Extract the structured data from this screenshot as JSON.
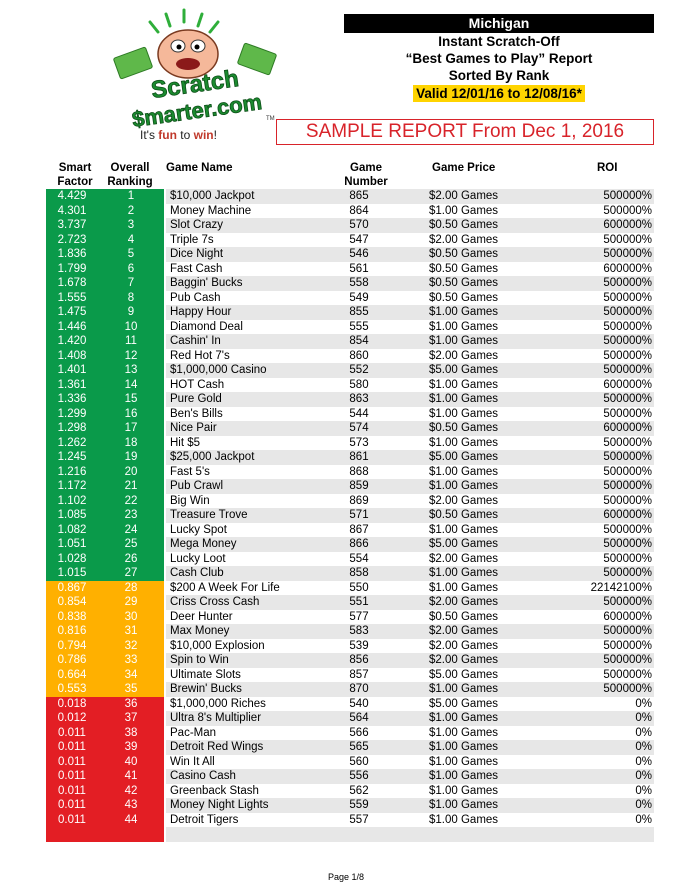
{
  "logo": {
    "top_word": "Scratch",
    "bottom_word": "$marter.com",
    "tag_pre": "It's ",
    "tag_bold": "fun",
    "tag_mid": " to ",
    "tag_bold2": "win",
    "tag_post": "!",
    "tm": "TM"
  },
  "header": {
    "state": "Michigan",
    "line1": "Instant Scratch-Off",
    "line2": "“Best Games to Play” Report",
    "line3": "Sorted By Rank",
    "valid": "Valid 12/01/16 to 12/08/16*"
  },
  "sample_banner": "SAMPLE REPORT From Dec 1, 2016",
  "columns": {
    "smart_factor_1": "Smart",
    "smart_factor_2": "Factor",
    "overall_1": "Overall",
    "overall_2": "Ranking",
    "game_name": "Game Name",
    "game_number_1": "Game",
    "game_number_2": "Number",
    "game_price": "Game Price",
    "roi": "ROI"
  },
  "colors": {
    "green": "#0a9a4a",
    "orange": "#ffb000",
    "red": "#e31e24"
  },
  "rows": [
    {
      "sf": "4.429",
      "rank": "1",
      "name": "$10,000 Jackpot",
      "num": "865",
      "price": "$2.00 Games",
      "roi": "500000%",
      "band": "green"
    },
    {
      "sf": "4.301",
      "rank": "2",
      "name": "Money Machine",
      "num": "864",
      "price": "$1.00 Games",
      "roi": "500000%",
      "band": "green"
    },
    {
      "sf": "3.737",
      "rank": "3",
      "name": "Slot Crazy",
      "num": "570",
      "price": "$0.50 Games",
      "roi": "600000%",
      "band": "green"
    },
    {
      "sf": "2.723",
      "rank": "4",
      "name": "Triple 7s",
      "num": "547",
      "price": "$2.00 Games",
      "roi": "500000%",
      "band": "green"
    },
    {
      "sf": "1.836",
      "rank": "5",
      "name": "Dice Night",
      "num": "546",
      "price": "$0.50 Games",
      "roi": "500000%",
      "band": "green"
    },
    {
      "sf": "1.799",
      "rank": "6",
      "name": "Fast Cash",
      "num": "561",
      "price": "$0.50 Games",
      "roi": "600000%",
      "band": "green"
    },
    {
      "sf": "1.678",
      "rank": "7",
      "name": "Baggin' Bucks",
      "num": "558",
      "price": "$0.50 Games",
      "roi": "500000%",
      "band": "green"
    },
    {
      "sf": "1.555",
      "rank": "8",
      "name": "Pub Cash",
      "num": "549",
      "price": "$0.50 Games",
      "roi": "500000%",
      "band": "green"
    },
    {
      "sf": "1.475",
      "rank": "9",
      "name": "Happy Hour",
      "num": "855",
      "price": "$1.00 Games",
      "roi": "500000%",
      "band": "green"
    },
    {
      "sf": "1.446",
      "rank": "10",
      "name": "Diamond Deal",
      "num": "555",
      "price": "$1.00 Games",
      "roi": "500000%",
      "band": "green"
    },
    {
      "sf": "1.420",
      "rank": "11",
      "name": "Cashin' In",
      "num": "854",
      "price": "$1.00 Games",
      "roi": "500000%",
      "band": "green"
    },
    {
      "sf": "1.408",
      "rank": "12",
      "name": "Red Hot 7's",
      "num": "860",
      "price": "$2.00 Games",
      "roi": "500000%",
      "band": "green"
    },
    {
      "sf": "1.401",
      "rank": "13",
      "name": "$1,000,000 Casino",
      "num": "552",
      "price": "$5.00 Games",
      "roi": "500000%",
      "band": "green"
    },
    {
      "sf": "1.361",
      "rank": "14",
      "name": "HOT Cash",
      "num": "580",
      "price": "$1.00 Games",
      "roi": "600000%",
      "band": "green"
    },
    {
      "sf": "1.336",
      "rank": "15",
      "name": "Pure Gold",
      "num": "863",
      "price": "$1.00 Games",
      "roi": "500000%",
      "band": "green"
    },
    {
      "sf": "1.299",
      "rank": "16",
      "name": "Ben's Bills",
      "num": "544",
      "price": "$1.00 Games",
      "roi": "500000%",
      "band": "green"
    },
    {
      "sf": "1.298",
      "rank": "17",
      "name": "Nice Pair",
      "num": "574",
      "price": "$0.50 Games",
      "roi": "600000%",
      "band": "green"
    },
    {
      "sf": "1.262",
      "rank": "18",
      "name": "Hit $5",
      "num": "573",
      "price": "$1.00 Games",
      "roi": "500000%",
      "band": "green"
    },
    {
      "sf": "1.245",
      "rank": "19",
      "name": "$25,000 Jackpot",
      "num": "861",
      "price": "$5.00 Games",
      "roi": "500000%",
      "band": "green"
    },
    {
      "sf": "1.216",
      "rank": "20",
      "name": "Fast 5's",
      "num": "868",
      "price": "$1.00 Games",
      "roi": "500000%",
      "band": "green"
    },
    {
      "sf": "1.172",
      "rank": "21",
      "name": "Pub Crawl",
      "num": "859",
      "price": "$1.00 Games",
      "roi": "500000%",
      "band": "green"
    },
    {
      "sf": "1.102",
      "rank": "22",
      "name": "Big Win",
      "num": "869",
      "price": "$2.00 Games",
      "roi": "500000%",
      "band": "green"
    },
    {
      "sf": "1.085",
      "rank": "23",
      "name": "Treasure Trove",
      "num": "571",
      "price": "$0.50 Games",
      "roi": "600000%",
      "band": "green"
    },
    {
      "sf": "1.082",
      "rank": "24",
      "name": "Lucky Spot",
      "num": "867",
      "price": "$1.00 Games",
      "roi": "500000%",
      "band": "green"
    },
    {
      "sf": "1.051",
      "rank": "25",
      "name": "Mega Money",
      "num": "866",
      "price": "$5.00 Games",
      "roi": "500000%",
      "band": "green"
    },
    {
      "sf": "1.028",
      "rank": "26",
      "name": "Lucky Loot",
      "num": "554",
      "price": "$2.00 Games",
      "roi": "500000%",
      "band": "green"
    },
    {
      "sf": "1.015",
      "rank": "27",
      "name": "Cash Club",
      "num": "858",
      "price": "$1.00 Games",
      "roi": "500000%",
      "band": "green"
    },
    {
      "sf": "0.867",
      "rank": "28",
      "name": "$200 A Week For Life",
      "num": "550",
      "price": "$1.00 Games",
      "roi": "22142100%",
      "band": "orange"
    },
    {
      "sf": "0.854",
      "rank": "29",
      "name": "Criss Cross Cash",
      "num": "551",
      "price": "$2.00 Games",
      "roi": "500000%",
      "band": "orange"
    },
    {
      "sf": "0.838",
      "rank": "30",
      "name": "Deer Hunter",
      "num": "577",
      "price": "$0.50 Games",
      "roi": "600000%",
      "band": "orange"
    },
    {
      "sf": "0.816",
      "rank": "31",
      "name": "Max Money",
      "num": "583",
      "price": "$2.00 Games",
      "roi": "500000%",
      "band": "orange"
    },
    {
      "sf": "0.794",
      "rank": "32",
      "name": "$10,000 Explosion",
      "num": "539",
      "price": "$2.00 Games",
      "roi": "500000%",
      "band": "orange"
    },
    {
      "sf": "0.786",
      "rank": "33",
      "name": "Spin to Win",
      "num": "856",
      "price": "$2.00 Games",
      "roi": "500000%",
      "band": "orange"
    },
    {
      "sf": "0.664",
      "rank": "34",
      "name": "Ultimate Slots",
      "num": "857",
      "price": "$5.00 Games",
      "roi": "500000%",
      "band": "orange"
    },
    {
      "sf": "0.553",
      "rank": "35",
      "name": "Brewin' Bucks",
      "num": "870",
      "price": "$1.00 Games",
      "roi": "500000%",
      "band": "orange"
    },
    {
      "sf": "0.018",
      "rank": "36",
      "name": "$1,000,000 Riches",
      "num": "540",
      "price": "$5.00 Games",
      "roi": "0%",
      "band": "red"
    },
    {
      "sf": "0.012",
      "rank": "37",
      "name": "Ultra 8's Multiplier",
      "num": "564",
      "price": "$1.00 Games",
      "roi": "0%",
      "band": "red"
    },
    {
      "sf": "0.011",
      "rank": "38",
      "name": "Pac-Man",
      "num": "566",
      "price": "$1.00 Games",
      "roi": "0%",
      "band": "red"
    },
    {
      "sf": "0.011",
      "rank": "39",
      "name": "Detroit Red Wings",
      "num": "565",
      "price": "$1.00 Games",
      "roi": "0%",
      "band": "red"
    },
    {
      "sf": "0.011",
      "rank": "40",
      "name": "Win It All",
      "num": "560",
      "price": "$1.00 Games",
      "roi": "0%",
      "band": "red"
    },
    {
      "sf": "0.011",
      "rank": "41",
      "name": "Casino Cash",
      "num": "556",
      "price": "$1.00 Games",
      "roi": "0%",
      "band": "red"
    },
    {
      "sf": "0.011",
      "rank": "42",
      "name": "Greenback Stash",
      "num": "562",
      "price": "$1.00 Games",
      "roi": "0%",
      "band": "red"
    },
    {
      "sf": "0.011",
      "rank": "43",
      "name": "Money Night Lights",
      "num": "559",
      "price": "$1.00 Games",
      "roi": "0%",
      "band": "red"
    },
    {
      "sf": "0.011",
      "rank": "44",
      "name": "Detroit Tigers",
      "num": "557",
      "price": "$1.00 Games",
      "roi": "0%",
      "band": "red"
    }
  ],
  "footer": "Page 1/8"
}
